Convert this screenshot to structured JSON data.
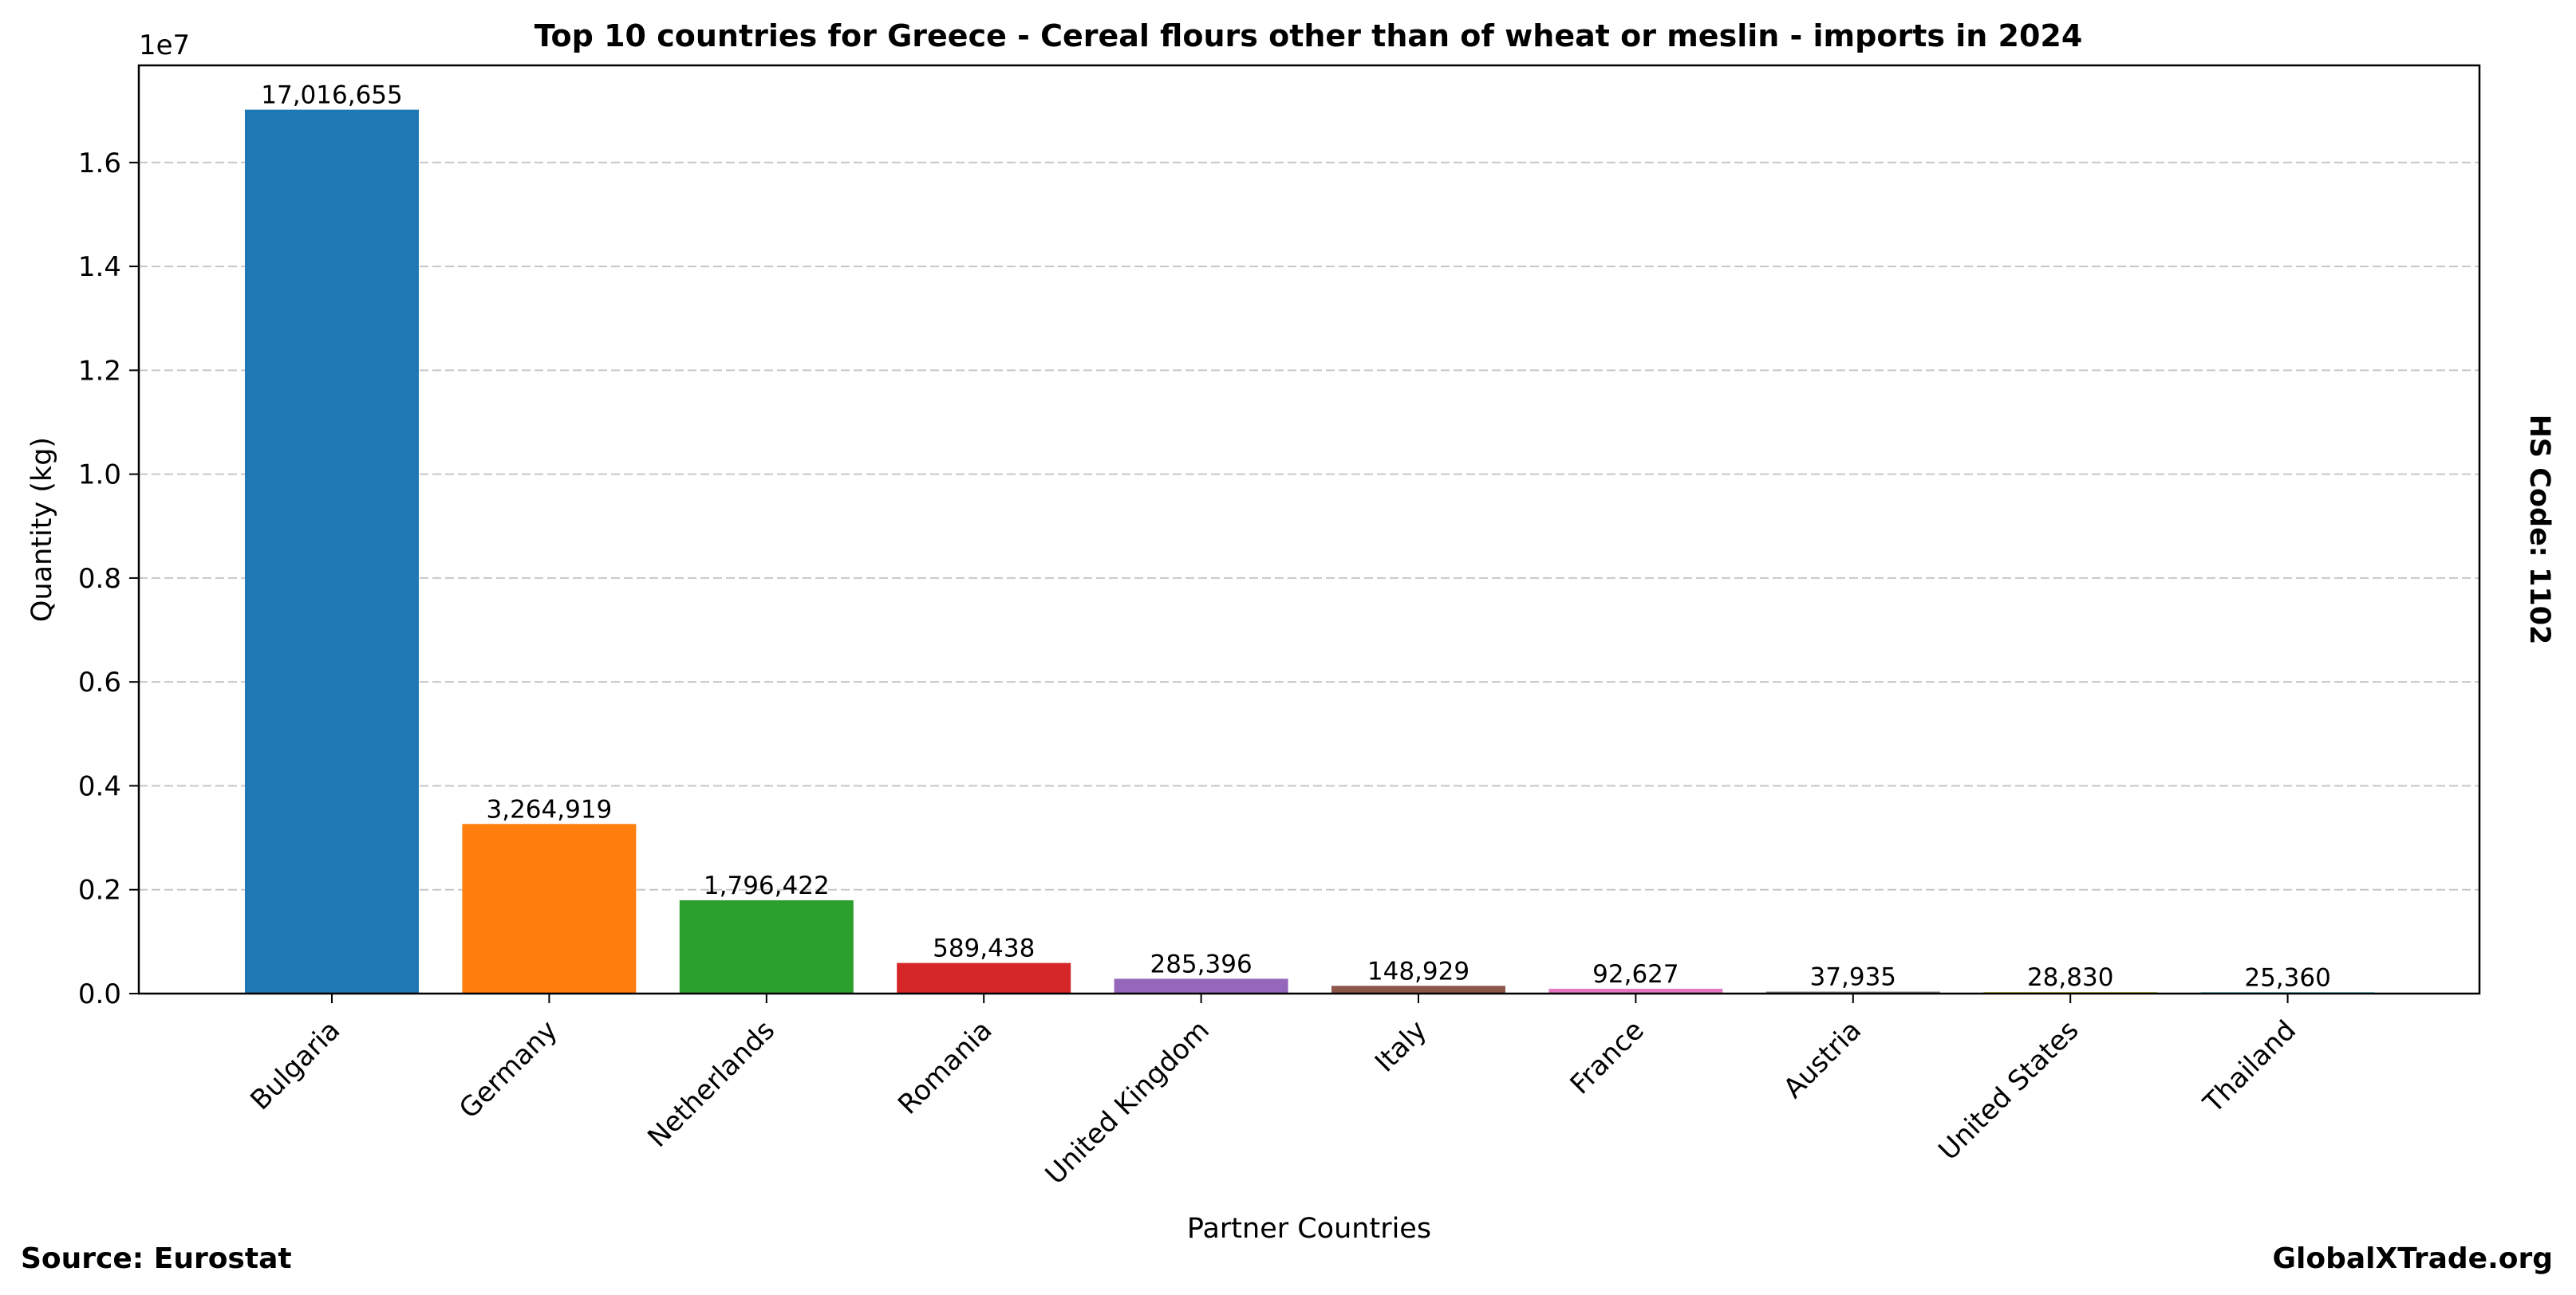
{
  "chart_data": {
    "type": "bar",
    "title": "Top 10 countries for Greece - Cereal flours other than of wheat or meslin - imports in 2024",
    "xlabel": "Partner Countries",
    "ylabel": "Quantity (kg)",
    "y_offset_label": "1e7",
    "ylim": [
      0,
      17870000
    ],
    "yticks": [
      0,
      2000000,
      4000000,
      6000000,
      8000000,
      10000000,
      12000000,
      14000000,
      16000000
    ],
    "ytick_labels": [
      "0.0",
      "0.2",
      "0.4",
      "0.6",
      "0.8",
      "1.0",
      "1.2",
      "1.4",
      "1.6"
    ],
    "grid": "y-dashed",
    "categories": [
      "Bulgaria",
      "Germany",
      "Netherlands",
      "Romania",
      "United Kingdom",
      "Italy",
      "France",
      "Austria",
      "United States",
      "Thailand"
    ],
    "values": [
      17016655,
      3264919,
      1796422,
      589438,
      285396,
      148929,
      92627,
      37935,
      28830,
      25360
    ],
    "value_labels": [
      "17,016,655",
      "3,264,919",
      "1,796,422",
      "589,438",
      "285,396",
      "148,929",
      "92,627",
      "37,935",
      "28,830",
      "25,360"
    ],
    "colors": [
      "#1f77b4",
      "#ff7f0e",
      "#2ca02c",
      "#d62728",
      "#9467bd",
      "#8c564b",
      "#e377c2",
      "#7f7f7f",
      "#bcbd22",
      "#17becf"
    ],
    "right_label": "HS Code: 1102"
  },
  "footer": {
    "source": "Source: Eurostat",
    "brand": "GlobalXTrade.org"
  }
}
